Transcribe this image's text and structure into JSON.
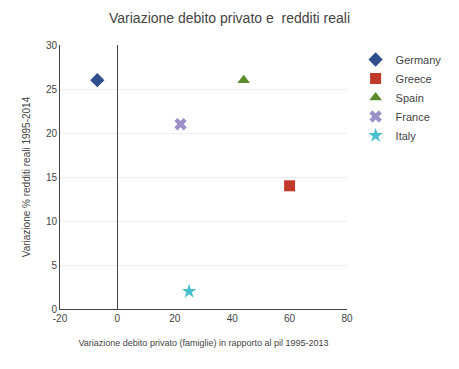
{
  "chart_data": {
    "type": "scatter",
    "title": "Variazione debito privato e  redditi reali",
    "xlabel": "Variazione debito privato (famiglie) in rapporto al pil 1995-2013",
    "ylabel": "Variazione % redditi reali 1995-2014",
    "xlim": [
      -20,
      80
    ],
    "ylim": [
      0,
      30
    ],
    "xticks": [
      -20,
      0,
      20,
      40,
      60,
      80
    ],
    "yticks": [
      0,
      5,
      10,
      15,
      20,
      25,
      30
    ],
    "grid": "y",
    "legend": "right",
    "series": [
      {
        "name": "Germany",
        "x": [
          -7
        ],
        "values": [
          26
        ],
        "color": "#2E4F8B",
        "marker": "diamond"
      },
      {
        "name": "Greece",
        "x": [
          60
        ],
        "values": [
          14
        ],
        "color": "#C0392B",
        "marker": "square"
      },
      {
        "name": "Spain",
        "x": [
          44
        ],
        "values": [
          26
        ],
        "color": "#5A8A2A",
        "marker": "triangle-up"
      },
      {
        "name": "France",
        "x": [
          22
        ],
        "values": [
          21
        ],
        "color": "#9B90C8",
        "marker": "x"
      },
      {
        "name": "Italy",
        "x": [
          25
        ],
        "values": [
          2
        ],
        "color": "#4ABFCF",
        "marker": "star"
      }
    ]
  }
}
